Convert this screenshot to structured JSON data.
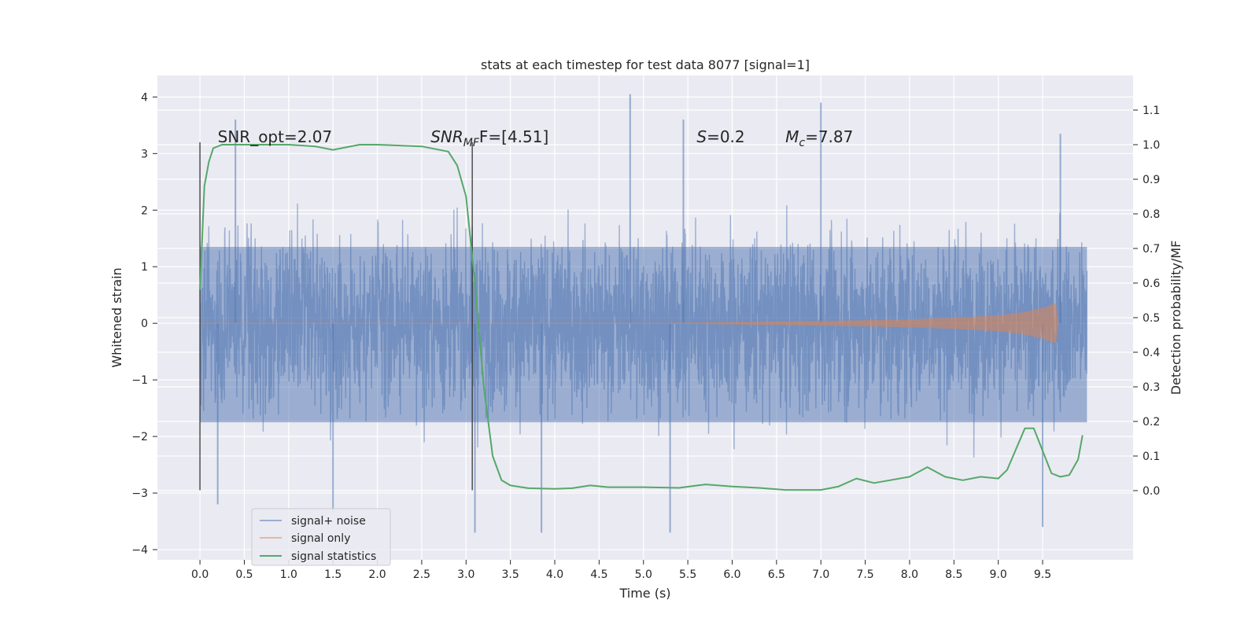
{
  "chart_data": {
    "type": "line",
    "title": "stats at each timestep for test data 8077 [signal=1]",
    "xlabel": "Time (s)",
    "ylabel_left": "Whitened strain",
    "ylabel_right": "Detection probability/MF",
    "xlim": [
      -0.48,
      10.52
    ],
    "ylim_left": [
      -4.18,
      4.38
    ],
    "ylim_right": [
      -0.2,
      1.2
    ],
    "x_ticks": [
      "0.0",
      "0.5",
      "1.0",
      "1.5",
      "2.0",
      "2.5",
      "3.0",
      "3.5",
      "4.0",
      "4.5",
      "5.0",
      "5.5",
      "6.0",
      "6.5",
      "7.0",
      "7.5",
      "8.0",
      "8.5",
      "9.0",
      "9.5"
    ],
    "y_left_ticks": [
      "4",
      "3",
      "2",
      "1",
      "0",
      "−1",
      "−2",
      "−3",
      "−4"
    ],
    "y_right_ticks": [
      "1.1",
      "1.0",
      "0.9",
      "0.8",
      "0.7",
      "0.6",
      "0.5",
      "0.4",
      "0.3",
      "0.2",
      "0.1",
      "0.0"
    ],
    "grid": true,
    "legend_position": "lower-left",
    "annotations": [
      {
        "text": "SNR_opt=2.07",
        "x": 0.2,
        "y": 3.2
      },
      {
        "text_main": "SNR",
        "text_sub": "MF",
        "text_rest": "F=[4.51]",
        "x": 2.6,
        "y": 3.2
      },
      {
        "text_main": "S",
        "text_rest": "=0.2",
        "x": 5.6,
        "y": 3.2
      },
      {
        "text_main": "M",
        "text_sub": "c",
        "text_rest": "=7.87",
        "x": 6.6,
        "y": 3.2
      }
    ],
    "vertical_markers": [
      {
        "x": 0.0,
        "ymin": -2.95,
        "ymax": 3.2
      },
      {
        "x": 3.07,
        "ymin": -2.95,
        "ymax": 3.2
      }
    ],
    "series": [
      {
        "name": "signal+ noise",
        "color": "#4c72b0",
        "axis": "left",
        "x_range": [
          0.0,
          10.0
        ],
        "envelope_upper": 1.35,
        "envelope_lower": -1.75,
        "spike_extremes": [
          {
            "x": 0.4,
            "y": 3.6
          },
          {
            "x": 0.2,
            "y": -3.2
          },
          {
            "x": 1.5,
            "y": -3.35
          },
          {
            "x": 3.1,
            "y": -3.7
          },
          {
            "x": 3.85,
            "y": -3.7
          },
          {
            "x": 4.85,
            "y": 4.05
          },
          {
            "x": 5.3,
            "y": -3.7
          },
          {
            "x": 5.45,
            "y": 3.6
          },
          {
            "x": 7.0,
            "y": 3.9
          },
          {
            "x": 9.5,
            "y": -3.6
          },
          {
            "x": 9.7,
            "y": 3.35
          }
        ]
      },
      {
        "name": "signal only",
        "color": "#dd8452",
        "axis": "left",
        "x": [
          0.0,
          5.0,
          6.0,
          7.0,
          8.0,
          8.5,
          9.0,
          9.3,
          9.5,
          9.6,
          9.65,
          9.68
        ],
        "amplitude": [
          0.0,
          0.0,
          0.02,
          0.04,
          0.07,
          0.1,
          0.14,
          0.2,
          0.27,
          0.33,
          0.35,
          0.02
        ]
      },
      {
        "name": "signal statistics",
        "color": "#55a868",
        "axis": "right",
        "x": [
          0.0,
          0.05,
          0.1,
          0.15,
          0.25,
          0.5,
          1.0,
          1.3,
          1.5,
          1.6,
          1.8,
          2.0,
          2.5,
          2.8,
          2.9,
          3.0,
          3.1,
          3.2,
          3.3,
          3.4,
          3.5,
          3.7,
          4.0,
          4.2,
          4.4,
          4.6,
          5.0,
          5.4,
          5.7,
          6.0,
          6.3,
          6.6,
          7.0,
          7.2,
          7.4,
          7.6,
          8.0,
          8.2,
          8.4,
          8.6,
          8.8,
          9.0,
          9.1,
          9.3,
          9.4,
          9.6,
          9.7,
          9.8,
          9.9,
          9.95
        ],
        "y": [
          0.58,
          0.88,
          0.95,
          0.99,
          1.0,
          1.0,
          1.0,
          0.995,
          0.985,
          0.99,
          1.0,
          1.0,
          0.995,
          0.98,
          0.94,
          0.85,
          0.6,
          0.3,
          0.1,
          0.03,
          0.015,
          0.007,
          0.005,
          0.007,
          0.015,
          0.01,
          0.01,
          0.008,
          0.018,
          0.012,
          0.008,
          0.002,
          0.002,
          0.012,
          0.035,
          0.022,
          0.04,
          0.068,
          0.04,
          0.03,
          0.04,
          0.035,
          0.06,
          0.18,
          0.18,
          0.05,
          0.04,
          0.045,
          0.09,
          0.16
        ]
      }
    ]
  }
}
